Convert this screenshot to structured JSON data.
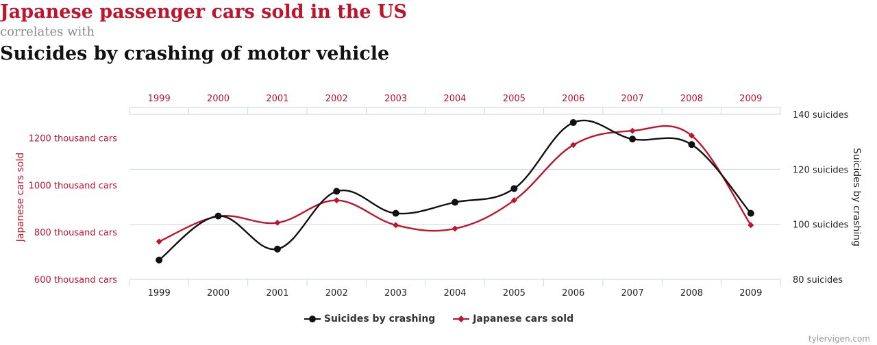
{
  "titles": {
    "main": "Japanese passenger cars sold in the US",
    "connector": "correlates with",
    "secondary": "Suicides by crashing of motor vehicle"
  },
  "credit": "tylervigen.com",
  "colors": {
    "red": "#c0142c",
    "black": "#111111",
    "grid": "#cdd6e0"
  },
  "chart_data": {
    "type": "line",
    "x": [
      "1999",
      "2000",
      "2001",
      "2002",
      "2003",
      "2004",
      "2005",
      "2006",
      "2007",
      "2008",
      "2009"
    ],
    "y_left": {
      "label": "Japanese cars sold",
      "range": [
        600,
        1300
      ],
      "ticks": [
        600,
        800,
        1000,
        1200
      ],
      "tick_labels": [
        "600 thousand cars",
        "800 thousand cars",
        "1000 thousand cars",
        "1200 thousand cars"
      ]
    },
    "y_right": {
      "label": "Suicides by crashing",
      "range": [
        80,
        140
      ],
      "ticks": [
        80,
        100,
        120,
        140
      ],
      "tick_labels": [
        "80 suicides",
        "100 suicides",
        "120 suicides",
        "140 suicides"
      ]
    },
    "series": [
      {
        "name": "Suicides by crashing",
        "axis": "right",
        "color": "#111111",
        "marker": "circle",
        "values": [
          87,
          103,
          91,
          112,
          104,
          108,
          113,
          137,
          131,
          129,
          104
        ]
      },
      {
        "name": "Japanese cars sold",
        "axis": "left",
        "color": "#c0142c",
        "marker": "diamond",
        "values": [
          760,
          867,
          840,
          935,
          830,
          815,
          935,
          1170,
          1230,
          1210,
          830
        ]
      }
    ],
    "grid": true,
    "legend_position": "bottom"
  }
}
